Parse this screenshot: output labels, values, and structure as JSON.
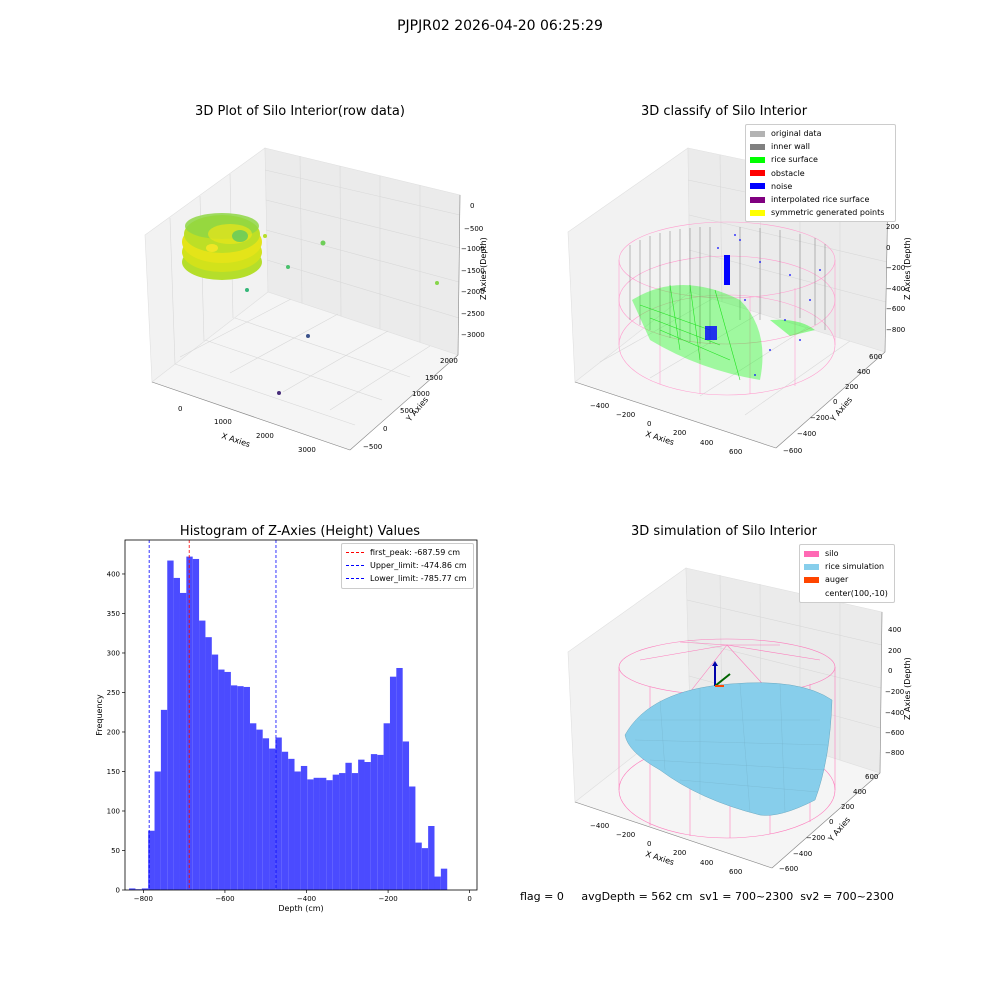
{
  "suptitle": "PJPJR02 2026-04-20 06:25:29",
  "status_line": "flag = 0     avgDepth = 562 cm  sv1 = 700~2300  sv2 = 700~2300",
  "colors": {
    "hist_bar": "#4b4bff",
    "first_peak": "#ff0000",
    "limits": "#0000ff",
    "pane": "#f2f2f2",
    "grid": "#dcdcdc"
  },
  "chart_data": [
    {
      "id": "raw",
      "type": "scatter",
      "title": "3D Plot of Silo Interior(row data)",
      "xlabel": "X Axies",
      "ylabel": "Y Axies",
      "zlabel": "Z Axies (Depth)",
      "x_ticks": [
        "0",
        "1000",
        "2000",
        "3000"
      ],
      "y_ticks": [
        "−500",
        "0",
        "500",
        "1000",
        "1500",
        "2000"
      ],
      "z_ticks": [
        "0",
        "−500",
        "−1000",
        "−1500",
        "−2000",
        "−2500",
        "−3000"
      ],
      "colormap": "viridis",
      "dense_cluster": {
        "x": 200,
        "y": 1800,
        "z": "-400 to -700"
      },
      "outlier_points": [
        {
          "x": 1100,
          "y": 1400,
          "z": -1300
        },
        {
          "x": 1900,
          "y": 1700,
          "z": -900
        },
        {
          "x": 3200,
          "y": 2000,
          "z": -1800
        },
        {
          "x": 600,
          "y": 1300,
          "z": -1900
        },
        {
          "x": 1600,
          "y": 500,
          "z": -2700
        },
        {
          "x": 1300,
          "y": -300,
          "z": -3000
        }
      ]
    },
    {
      "id": "classify",
      "type": "scatter",
      "title": "3D classify of Silo Interior",
      "xlabel": "X Axies",
      "ylabel": "Y Axies",
      "zlabel": "Z Axies (Depth)",
      "x_ticks": [
        "−400",
        "−200",
        "0",
        "200",
        "400",
        "600"
      ],
      "y_ticks": [
        "−600",
        "−400",
        "−200",
        "0",
        "200",
        "400",
        "600"
      ],
      "z_ticks": [
        "200",
        "0",
        "−200",
        "−400",
        "−600",
        "−800"
      ],
      "legend": [
        {
          "label": "original data",
          "color": "#b3b3b3"
        },
        {
          "label": "inner wall",
          "color": "#808080"
        },
        {
          "label": "rice surface",
          "color": "#00ff00"
        },
        {
          "label": "obstacle",
          "color": "#ff0000"
        },
        {
          "label": "noise",
          "color": "#0000ff"
        },
        {
          "label": "interpolated rice surface",
          "color": "#800080"
        },
        {
          "label": "symmetric generated points",
          "color": "#ffff00"
        }
      ]
    },
    {
      "id": "hist",
      "type": "bar",
      "title": "Histogram of Z-Axies (Height) Values",
      "xlabel": "Depth (cm)",
      "ylabel": "Frequency",
      "xlim": [
        -845,
        18
      ],
      "ylim": [
        0,
        443
      ],
      "x_ticks": [
        -800,
        -600,
        -400,
        -200,
        0
      ],
      "y_ticks": [
        0,
        50,
        100,
        150,
        200,
        250,
        300,
        350,
        400
      ],
      "bin_start": -835,
      "bin_width": 15.6,
      "values": [
        2,
        1,
        2,
        75,
        150,
        228,
        417,
        395,
        376,
        422,
        419,
        341,
        320,
        298,
        279,
        276,
        259,
        258,
        257,
        211,
        203,
        192,
        179,
        193,
        175,
        166,
        150,
        157,
        140,
        142,
        142,
        139,
        146,
        148,
        161,
        148,
        165,
        162,
        172,
        171,
        211,
        270,
        281,
        188,
        131,
        60,
        53,
        81,
        17,
        27
      ],
      "vlines": [
        {
          "label": "first_peak: -687.59 cm",
          "x": -687.59,
          "color": "#ff0000"
        },
        {
          "label": "Upper_limit: -474.86 cm",
          "x": -474.86,
          "color": "#0000ff"
        },
        {
          "label": "Lower_limit: -785.77 cm",
          "x": -785.77,
          "color": "#0000ff"
        }
      ],
      "legend_position": "upper right"
    },
    {
      "id": "sim",
      "type": "surface",
      "title": "3D simulation of Silo Interior",
      "xlabel": "X Axies",
      "ylabel": "Y Axies",
      "zlabel": "Z Axies (Depth)",
      "x_ticks": [
        "−400",
        "−200",
        "0",
        "200",
        "400",
        "600"
      ],
      "y_ticks": [
        "−600",
        "−400",
        "−200",
        "0",
        "200",
        "400",
        "600"
      ],
      "z_ticks": [
        "400",
        "200",
        "0",
        "−200",
        "−400",
        "−600",
        "−800"
      ],
      "legend": [
        {
          "label": "silo",
          "color": "#ff69b4"
        },
        {
          "label": "rice simulation",
          "color": "#87ceeb"
        },
        {
          "label": "auger",
          "color": "#ff4500"
        },
        {
          "label": "center(100,-10)",
          "color": "#ffffff"
        }
      ]
    }
  ]
}
